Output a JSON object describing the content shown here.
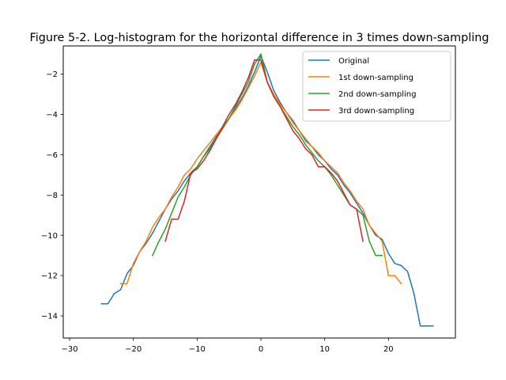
{
  "chart_data": {
    "type": "line",
    "title": "Figure 5-2. Log-histogram for the horizontal difference in 3 times down-sampling",
    "xlabel": "",
    "ylabel": "",
    "xlim": [
      -31,
      30.5
    ],
    "ylim": [
      -15.1,
      -0.6
    ],
    "xticks": [
      -30,
      -20,
      -10,
      0,
      10,
      20
    ],
    "yticks": [
      -14,
      -12,
      -10,
      -8,
      -6,
      -4,
      -2
    ],
    "grid": false,
    "legend_position": "top-right",
    "series": [
      {
        "name": "Original",
        "color": "#1f77b4",
        "x": [
          -25,
          -24,
          -23,
          -22,
          -21,
          -20,
          -19,
          -18,
          -17,
          -16,
          -15,
          -14,
          -13,
          -12,
          -11,
          -10,
          -9,
          -8,
          -7,
          -6,
          -5,
          -4,
          -3,
          -2,
          -1,
          0,
          1,
          2,
          3,
          4,
          5,
          6,
          7,
          8,
          9,
          10,
          11,
          12,
          13,
          14,
          15,
          16,
          17,
          18,
          19,
          20,
          21,
          22,
          23,
          24,
          25,
          26,
          27
        ],
        "y": [
          -13.4,
          -13.4,
          -12.9,
          -12.7,
          -11.9,
          -11.5,
          -10.8,
          -10.4,
          -9.9,
          -9.3,
          -8.7,
          -8.2,
          -7.8,
          -7.3,
          -6.9,
          -6.6,
          -6.1,
          -5.6,
          -5.1,
          -4.7,
          -4.2,
          -3.7,
          -3.2,
          -2.6,
          -1.9,
          -1.1,
          -1.9,
          -2.8,
          -3.4,
          -3.9,
          -4.3,
          -4.8,
          -5.3,
          -5.6,
          -6.0,
          -6.3,
          -6.7,
          -7.0,
          -7.5,
          -7.9,
          -8.4,
          -8.9,
          -9.5,
          -10.0,
          -10.2,
          -10.9,
          -11.4,
          -11.5,
          -11.8,
          -12.9,
          -14.5,
          -14.5,
          -14.5
        ]
      },
      {
        "name": "1st down-sampling",
        "color": "#ff7f0e",
        "x": [
          -22,
          -21,
          -20,
          -19,
          -18,
          -17,
          -16,
          -15,
          -14,
          -13,
          -12,
          -11,
          -10,
          -9,
          -8,
          -7,
          -6,
          -5,
          -4,
          -3,
          -2,
          -1,
          0,
          1,
          2,
          3,
          4,
          5,
          6,
          7,
          8,
          9,
          10,
          11,
          12,
          13,
          14,
          15,
          16,
          17,
          18,
          19,
          20,
          21,
          22
        ],
        "y": [
          -12.4,
          -12.4,
          -11.4,
          -10.8,
          -10.3,
          -9.6,
          -9.1,
          -8.7,
          -8.1,
          -7.6,
          -7.0,
          -6.7,
          -6.2,
          -5.8,
          -5.4,
          -5.0,
          -4.6,
          -4.2,
          -3.8,
          -3.3,
          -2.7,
          -2.1,
          -1.4,
          -2.4,
          -3.0,
          -3.5,
          -3.9,
          -4.4,
          -4.8,
          -5.2,
          -5.6,
          -5.9,
          -6.3,
          -6.6,
          -6.9,
          -7.4,
          -7.8,
          -8.3,
          -8.7,
          -9.5,
          -9.9,
          -10.3,
          -12.0,
          -12.0,
          -12.4
        ]
      },
      {
        "name": "2nd down-sampling",
        "color": "#2ca02c",
        "x": [
          -17,
          -16,
          -15,
          -14,
          -13,
          -12,
          -11,
          -10,
          -9,
          -8,
          -7,
          -6,
          -5,
          -4,
          -3,
          -2,
          -1,
          0,
          1,
          2,
          3,
          4,
          5,
          6,
          7,
          8,
          9,
          10,
          11,
          12,
          13,
          14,
          15,
          16,
          17,
          18,
          19
        ],
        "y": [
          -11.0,
          -10.3,
          -9.7,
          -8.9,
          -8.1,
          -7.6,
          -7.0,
          -6.6,
          -6.1,
          -5.7,
          -5.2,
          -4.7,
          -4.2,
          -3.6,
          -3.0,
          -2.4,
          -1.5,
          -1.0,
          -2.4,
          -3.1,
          -3.6,
          -4.1,
          -4.6,
          -5.0,
          -5.5,
          -5.9,
          -6.3,
          -6.6,
          -7.0,
          -7.5,
          -8.0,
          -8.5,
          -8.7,
          -9.0,
          -10.3,
          -11.0,
          -11.0
        ]
      },
      {
        "name": "3rd down-sampling",
        "color": "#d62728",
        "x": [
          -15,
          -14,
          -13,
          -12,
          -11,
          -10,
          -9,
          -8,
          -7,
          -6,
          -5,
          -4,
          -3,
          -2,
          -1,
          0,
          1,
          2,
          3,
          4,
          5,
          6,
          7,
          8,
          9,
          10,
          11,
          12,
          13,
          14,
          15,
          16
        ],
        "y": [
          -10.3,
          -9.2,
          -9.2,
          -8.3,
          -6.9,
          -6.7,
          -6.3,
          -5.8,
          -5.2,
          -4.6,
          -4.0,
          -3.5,
          -2.9,
          -2.2,
          -1.3,
          -1.3,
          -2.4,
          -3.1,
          -3.6,
          -4.2,
          -4.8,
          -5.2,
          -5.7,
          -6.0,
          -6.6,
          -6.6,
          -6.9,
          -7.3,
          -7.9,
          -8.5,
          -8.7,
          -10.3
        ]
      }
    ]
  }
}
